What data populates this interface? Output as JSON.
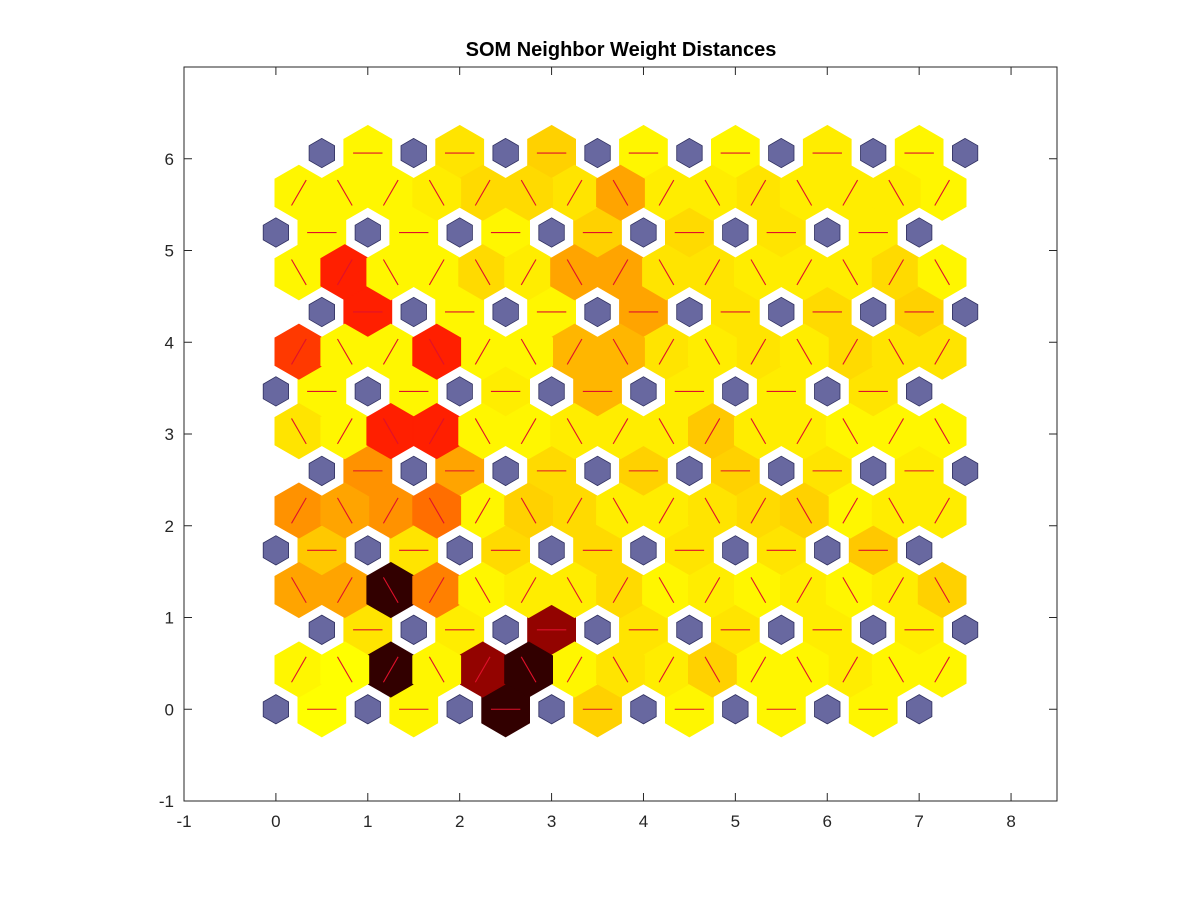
{
  "chart_data": {
    "type": "heatmap",
    "title": "SOM Neighbor Weight Distances",
    "xlabel": "",
    "ylabel": "",
    "xlim": [
      -1,
      8.5
    ],
    "ylim": [
      -1,
      7
    ],
    "x_ticks": [
      -1,
      0,
      1,
      2,
      3,
      4,
      5,
      6,
      7,
      8
    ],
    "y_ticks": [
      -1,
      0,
      1,
      2,
      3,
      4,
      5,
      6
    ],
    "grid": false,
    "grid_size": {
      "columns": 8,
      "rows": 8
    },
    "row_offset_odd": 0.5,
    "row_spacing": 0.866,
    "neuron_color": "#6868a0",
    "line_color": "#e0102a",
    "colormap_low": "#ffff00",
    "colormap_high": "#000000",
    "distance_scale": "relative, 0 = yellow (near) to 1 = black (far)",
    "horizontal_edges": [
      [
        0.0,
        0.05,
        0.95,
        0.25,
        0.05,
        0.05,
        0.05
      ],
      [
        0.15,
        0.1,
        0.85,
        0.15,
        0.15,
        0.1,
        0.1
      ],
      [
        0.3,
        0.15,
        0.2,
        0.2,
        0.15,
        0.15,
        0.3
      ],
      [
        0.45,
        0.4,
        0.2,
        0.25,
        0.25,
        0.15,
        0.1
      ],
      [
        0.05,
        0.05,
        0.1,
        0.35,
        0.1,
        0.1,
        0.15
      ],
      [
        0.7,
        0.05,
        0.05,
        0.4,
        0.15,
        0.2,
        0.25
      ],
      [
        0.05,
        0.05,
        0.05,
        0.25,
        0.2,
        0.15,
        0.1
      ],
      [
        0.05,
        0.15,
        0.25,
        0.05,
        0.05,
        0.1,
        0.05
      ]
    ],
    "vertical_edges_left": [
      [
        0.0,
        0.05,
        0.95,
        0.15,
        0.25,
        0.05,
        0.05
      ],
      [
        0.4,
        0.5,
        0.1,
        0.2,
        0.1,
        0.1,
        0.1
      ],
      [
        0.4,
        0.55,
        0.25,
        0.1,
        0.15,
        0.25,
        0.1
      ],
      [
        0.05,
        0.7,
        0.05,
        0.1,
        0.3,
        0.1,
        0.05
      ],
      [
        0.05,
        0.7,
        0.05,
        0.35,
        0.1,
        0.1,
        0.15
      ],
      [
        0.7,
        0.05,
        0.1,
        0.4,
        0.15,
        0.1,
        0.2
      ],
      [
        0.05,
        0.1,
        0.2,
        0.4,
        0.1,
        0.1,
        0.1
      ]
    ],
    "vertical_edges_right": [
      [
        0.05,
        0.95,
        0.85,
        0.05,
        0.1,
        0.05,
        0.1,
        0.05
      ],
      [
        0.4,
        0.95,
        0.05,
        0.1,
        0.05,
        0.05,
        0.05,
        0.25
      ],
      [
        0.45,
        0.45,
        0.05,
        0.2,
        0.1,
        0.2,
        0.05,
        0.1
      ],
      [
        0.15,
        0.7,
        0.05,
        0.1,
        0.1,
        0.1,
        0.05,
        0.05
      ],
      [
        0.65,
        0.05,
        0.05,
        0.35,
        0.15,
        0.15,
        0.2,
        0.15
      ],
      [
        0.05,
        0.05,
        0.2,
        0.4,
        0.15,
        0.1,
        0.1,
        0.05
      ],
      [
        0.05,
        0.05,
        0.2,
        0.15,
        0.1,
        0.15,
        0.1,
        0.05
      ]
    ]
  }
}
